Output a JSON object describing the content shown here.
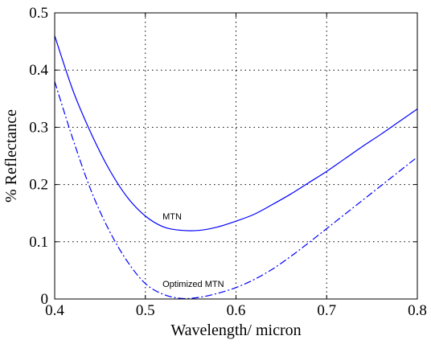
{
  "chart_data": {
    "type": "line",
    "xlabel": "Wavelength/ micron",
    "ylabel": "% Reflectance",
    "xlim": [
      0.4,
      0.8
    ],
    "ylim": [
      0,
      0.5
    ],
    "x_ticks": [
      "0.4",
      "0.5",
      "0.6",
      "0.7",
      "0.8"
    ],
    "y_ticks": [
      "0",
      "0.1",
      "0.2",
      "0.3",
      "0.4",
      "0.5"
    ],
    "grid": true,
    "series": [
      {
        "name": "MTN",
        "color": "#0000ff",
        "line_style": "solid",
        "x": [
          0.4,
          0.42,
          0.44,
          0.46,
          0.48,
          0.5,
          0.52,
          0.54,
          0.56,
          0.58,
          0.6,
          0.62,
          0.64,
          0.66,
          0.68,
          0.7,
          0.72,
          0.74,
          0.76,
          0.78,
          0.8
        ],
        "y": [
          0.46,
          0.365,
          0.29,
          0.227,
          0.178,
          0.145,
          0.126,
          0.12,
          0.12,
          0.126,
          0.136,
          0.148,
          0.165,
          0.183,
          0.203,
          0.223,
          0.245,
          0.267,
          0.288,
          0.31,
          0.332
        ]
      },
      {
        "name": "Optimized MTN",
        "color": "#0000ff",
        "line_style": "dash-dot",
        "x": [
          0.4,
          0.42,
          0.44,
          0.46,
          0.48,
          0.5,
          0.52,
          0.54,
          0.56,
          0.58,
          0.6,
          0.62,
          0.64,
          0.66,
          0.68,
          0.7,
          0.72,
          0.74,
          0.76,
          0.78,
          0.8
        ],
        "y": [
          0.38,
          0.28,
          0.19,
          0.12,
          0.066,
          0.027,
          0.008,
          0.001,
          0.003,
          0.01,
          0.02,
          0.034,
          0.052,
          0.074,
          0.098,
          0.123,
          0.148,
          0.173,
          0.198,
          0.223,
          0.248
        ]
      }
    ],
    "annotations": [
      {
        "text": "MTN",
        "x": 0.503,
        "y": 0.145
      },
      {
        "text": "Optimized MTN",
        "x": 0.503,
        "y": 0.027
      }
    ]
  }
}
